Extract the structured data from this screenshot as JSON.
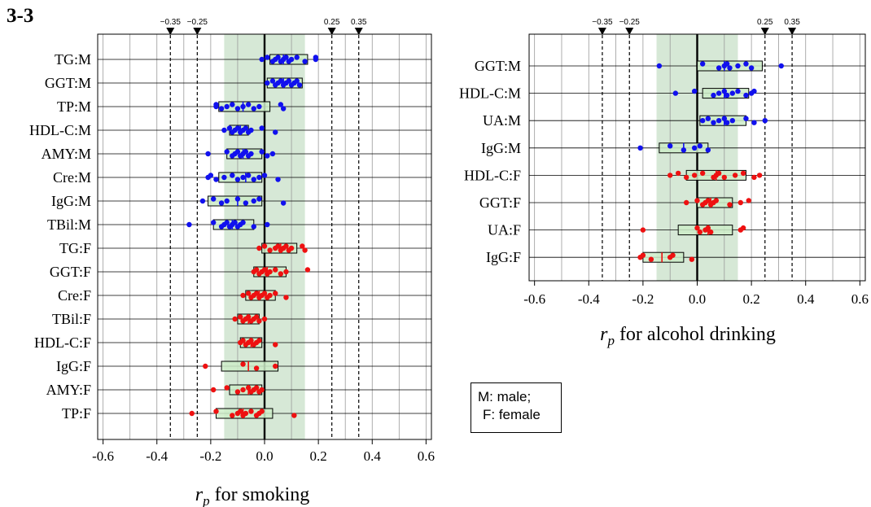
{
  "panel_label": "3-3",
  "legend": {
    "male": "M: male;",
    "female": "F: female"
  },
  "chart_data": [
    {
      "type": "scatter",
      "title": "",
      "xlabel": "for smoking",
      "xlabel_symbol": "r",
      "xlabel_subscript": "p",
      "xlim": [
        -0.62,
        0.62
      ],
      "xticks": [
        -0.6,
        -0.4,
        -0.2,
        0.0,
        0.2,
        0.4,
        0.6
      ],
      "xtick_labels": [
        "-0.6",
        "-0.4",
        "-0.2",
        "0.0",
        "0.2",
        "0.4",
        "0.6"
      ],
      "shaded_band": [
        -0.15,
        0.15
      ],
      "threshold_lines": [
        -0.35,
        -0.25,
        0.25,
        0.35
      ],
      "threshold_labels": [
        "−0.35",
        "−0.25",
        "0.25",
        "0.35"
      ],
      "colors": {
        "M": "#1111ee",
        "F": "#ee1111",
        "band": "#d6e8d6",
        "box": "#ccecc8"
      },
      "rows": [
        {
          "label": "TG:M",
          "sex": "M",
          "box": [
            0.02,
            0.16
          ],
          "median": 0.07,
          "points": [
            -0.01,
            0.01,
            0.03,
            0.04,
            0.05,
            0.06,
            0.07,
            0.08,
            0.09,
            0.1,
            0.12,
            0.15,
            0.19,
            0.19
          ]
        },
        {
          "label": "GGT:M",
          "sex": "M",
          "box": [
            0.01,
            0.14
          ],
          "median": 0.07,
          "points": [
            0.01,
            0.03,
            0.04,
            0.05,
            0.06,
            0.07,
            0.08,
            0.09,
            0.1,
            0.11,
            0.12,
            0.13
          ]
        },
        {
          "label": "TP:M",
          "sex": "M",
          "box": [
            -0.17,
            0.02
          ],
          "median": -0.08,
          "points": [
            -0.18,
            -0.18,
            -0.16,
            -0.14,
            -0.12,
            -0.1,
            -0.08,
            -0.06,
            -0.04,
            -0.02,
            0.06,
            0.07
          ]
        },
        {
          "label": "HDL-C:M",
          "sex": "M",
          "box": [
            -0.13,
            -0.06
          ],
          "median": -0.09,
          "points": [
            -0.15,
            -0.13,
            -0.12,
            -0.11,
            -0.1,
            -0.09,
            -0.08,
            -0.07,
            -0.06,
            -0.05,
            -0.01,
            0.04
          ]
        },
        {
          "label": "AMY:M",
          "sex": "M",
          "box": [
            -0.14,
            -0.01
          ],
          "median": -0.08,
          "points": [
            -0.21,
            -0.14,
            -0.12,
            -0.11,
            -0.1,
            -0.09,
            -0.08,
            -0.07,
            -0.06,
            -0.05,
            -0.01,
            0.01,
            0.03
          ]
        },
        {
          "label": "Cre:M",
          "sex": "M",
          "box": [
            -0.17,
            -0.01
          ],
          "median": -0.07,
          "points": [
            -0.21,
            -0.2,
            -0.18,
            -0.15,
            -0.12,
            -0.1,
            -0.08,
            -0.06,
            -0.04,
            -0.02,
            0.0,
            0.05
          ]
        },
        {
          "label": "IgG:M",
          "sex": "M",
          "box": [
            -0.21,
            -0.01
          ],
          "median": -0.1,
          "points": [
            -0.23,
            -0.19,
            -0.16,
            -0.14,
            -0.1,
            -0.07,
            -0.04,
            -0.02,
            0.07
          ]
        },
        {
          "label": "TBil:M",
          "sex": "M",
          "box": [
            -0.19,
            -0.04
          ],
          "median": -0.12,
          "points": [
            -0.28,
            -0.19,
            -0.16,
            -0.15,
            -0.14,
            -0.13,
            -0.12,
            -0.11,
            -0.1,
            -0.09,
            -0.08,
            -0.04,
            0.01
          ]
        },
        {
          "label": "TG:F",
          "sex": "F",
          "box": [
            -0.01,
            0.12
          ],
          "median": 0.06,
          "points": [
            -0.02,
            0.0,
            0.02,
            0.04,
            0.05,
            0.06,
            0.07,
            0.08,
            0.09,
            0.1,
            0.14,
            0.15
          ]
        },
        {
          "label": "GGT:F",
          "sex": "F",
          "box": [
            -0.04,
            0.08
          ],
          "median": 0.01,
          "points": [
            -0.04,
            -0.03,
            -0.02,
            -0.01,
            0.0,
            0.01,
            0.02,
            0.04,
            0.06,
            0.08,
            0.16
          ]
        },
        {
          "label": "Cre:F",
          "sex": "F",
          "box": [
            -0.07,
            0.04
          ],
          "median": -0.02,
          "points": [
            -0.08,
            -0.06,
            -0.05,
            -0.04,
            -0.03,
            -0.02,
            -0.01,
            0.0,
            0.01,
            0.02,
            0.04,
            0.08
          ]
        },
        {
          "label": "TBil:F",
          "sex": "F",
          "box": [
            -0.1,
            -0.02
          ],
          "median": -0.06,
          "points": [
            -0.11,
            -0.09,
            -0.08,
            -0.07,
            -0.06,
            -0.05,
            -0.04,
            -0.03,
            -0.02,
            0.0
          ]
        },
        {
          "label": "HDL-C:F",
          "sex": "F",
          "box": [
            -0.09,
            -0.01
          ],
          "median": -0.05,
          "points": [
            -0.09,
            -0.08,
            -0.07,
            -0.06,
            -0.05,
            -0.04,
            -0.03,
            -0.02,
            0.04
          ]
        },
        {
          "label": "IgG:F",
          "sex": "F",
          "box": [
            -0.16,
            0.05
          ],
          "median": -0.06,
          "points": [
            -0.22,
            -0.08,
            -0.03,
            0.04
          ]
        },
        {
          "label": "AMY:F",
          "sex": "F",
          "box": [
            -0.13,
            -0.01
          ],
          "median": -0.06,
          "points": [
            -0.19,
            -0.14,
            -0.1,
            -0.08,
            -0.06,
            -0.05,
            -0.04,
            -0.03,
            -0.02,
            -0.01
          ]
        },
        {
          "label": "TP:F",
          "sex": "F",
          "box": [
            -0.18,
            0.03
          ],
          "median": -0.08,
          "points": [
            -0.27,
            -0.18,
            -0.12,
            -0.1,
            -0.09,
            -0.08,
            -0.07,
            -0.05,
            -0.03,
            -0.02,
            -0.01,
            0.11
          ]
        }
      ]
    },
    {
      "type": "scatter",
      "title": "",
      "xlabel": "for alcohol drinking",
      "xlabel_symbol": "r",
      "xlabel_subscript": "p",
      "xlim": [
        -0.62,
        0.62
      ],
      "xticks": [
        -0.6,
        -0.4,
        -0.2,
        0.0,
        0.2,
        0.4,
        0.6
      ],
      "xtick_labels": [
        "-0.6",
        "-0.4",
        "-0.2",
        "0.0",
        "0.2",
        "0.4",
        "0.6"
      ],
      "shaded_band": [
        -0.15,
        0.15
      ],
      "threshold_lines": [
        -0.35,
        -0.25,
        0.25,
        0.35
      ],
      "threshold_labels": [
        "−0.35",
        "−0.25",
        "0.25",
        "0.35"
      ],
      "colors": {
        "M": "#1111ee",
        "F": "#ee1111",
        "band": "#d6e8d6",
        "box": "#ccecc8"
      },
      "rows": [
        {
          "label": "GGT:M",
          "sex": "M",
          "box": [
            0.0,
            0.24
          ],
          "median": 0.1,
          "points": [
            -0.14,
            0.02,
            0.08,
            0.1,
            0.11,
            0.12,
            0.15,
            0.18,
            0.2,
            0.31
          ]
        },
        {
          "label": "HDL-C:M",
          "sex": "M",
          "box": [
            0.02,
            0.19
          ],
          "median": 0.1,
          "points": [
            -0.08,
            -0.01,
            0.06,
            0.08,
            0.1,
            0.11,
            0.13,
            0.15,
            0.18,
            0.2,
            0.21
          ]
        },
        {
          "label": "UA:M",
          "sex": "M",
          "box": [
            0.01,
            0.18
          ],
          "median": 0.1,
          "points": [
            0.02,
            0.04,
            0.06,
            0.08,
            0.1,
            0.11,
            0.13,
            0.18,
            0.21,
            0.25
          ]
        },
        {
          "label": "IgG:M",
          "sex": "M",
          "box": [
            -0.14,
            0.04
          ],
          "median": -0.05,
          "points": [
            -0.21,
            -0.1,
            -0.05,
            -0.01,
            0.01,
            0.04
          ]
        },
        {
          "label": "HDL-C:F",
          "sex": "F",
          "box": [
            -0.04,
            0.18
          ],
          "median": 0.07,
          "points": [
            -0.1,
            -0.07,
            -0.04,
            -0.01,
            0.02,
            0.06,
            0.07,
            0.08,
            0.1,
            0.14,
            0.17,
            0.21,
            0.23
          ]
        },
        {
          "label": "GGT:F",
          "sex": "F",
          "box": [
            0.0,
            0.13
          ],
          "median": 0.05,
          "points": [
            -0.04,
            0.0,
            0.02,
            0.03,
            0.04,
            0.05,
            0.06,
            0.07,
            0.12,
            0.16,
            0.19
          ]
        },
        {
          "label": "UA:F",
          "sex": "F",
          "box": [
            -0.07,
            0.13
          ],
          "median": 0.04,
          "points": [
            -0.2,
            0.0,
            0.01,
            0.03,
            0.04,
            0.05,
            0.16,
            0.17
          ]
        },
        {
          "label": "IgG:F",
          "sex": "F",
          "box": [
            -0.2,
            -0.05
          ],
          "median": -0.13,
          "points": [
            -0.21,
            -0.2,
            -0.17,
            -0.1,
            -0.09,
            -0.02
          ]
        }
      ]
    }
  ]
}
